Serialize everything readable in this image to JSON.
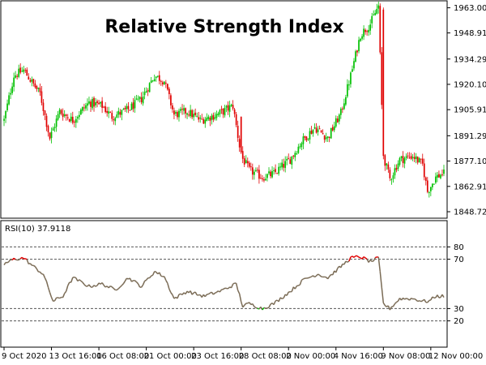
{
  "chart_data": {
    "type": "candlestick-with-rsi",
    "title": "Relative Strength Index",
    "price_axis": {
      "ticks": [
        "1963.000",
        "1948.910",
        "1934.290",
        "1920.100",
        "1905.910",
        "1891.290",
        "1877.100",
        "1862.910",
        "1848.720"
      ],
      "range": [
        1846,
        1966
      ]
    },
    "rsi": {
      "label": "RSI(10) 37.9118",
      "levels": [
        80,
        70,
        30,
        20
      ],
      "level_labels": [
        "80",
        "70",
        "30",
        "20"
      ],
      "range": [
        0,
        100
      ],
      "overbought": 70,
      "oversold": 30,
      "colors": {
        "normal": "#7a6b55",
        "overbought": "#e00000",
        "oversold": "#00c000"
      }
    },
    "x_axis": {
      "ticks": [
        {
          "label": "9 Oct 2020",
          "index": 0
        },
        {
          "label": "13 Oct 16:00",
          "index": 29
        },
        {
          "label": "16 Oct 08:00",
          "index": 58
        },
        {
          "label": "21 Oct 00:00",
          "index": 87
        },
        {
          "label": "23 Oct 16:00",
          "index": 116
        },
        {
          "label": "28 Oct 08:00",
          "index": 145
        },
        {
          "label": "2 Nov 00:00",
          "index": 174
        },
        {
          "label": "4 Nov 16:00",
          "index": 203
        },
        {
          "label": "9 Nov 08:00",
          "index": 232
        },
        {
          "label": "12 Nov 00:00",
          "index": 261
        }
      ]
    },
    "candle_colors": {
      "up": "#00c000",
      "down": "#e00000"
    },
    "close_anchors": [
      [
        0,
        1900
      ],
      [
        6,
        1925
      ],
      [
        12,
        1928
      ],
      [
        18,
        1920
      ],
      [
        22,
        1915
      ],
      [
        28,
        1890
      ],
      [
        34,
        1905
      ],
      [
        42,
        1900
      ],
      [
        52,
        1910
      ],
      [
        60,
        1908
      ],
      [
        66,
        1902
      ],
      [
        76,
        1906
      ],
      [
        84,
        1912
      ],
      [
        92,
        1925
      ],
      [
        98,
        1922
      ],
      [
        104,
        1903
      ],
      [
        112,
        1905
      ],
      [
        120,
        1900
      ],
      [
        130,
        1903
      ],
      [
        140,
        1908
      ],
      [
        145,
        1880
      ],
      [
        150,
        1872
      ],
      [
        158,
        1868
      ],
      [
        165,
        1870
      ],
      [
        175,
        1878
      ],
      [
        182,
        1888
      ],
      [
        190,
        1896
      ],
      [
        198,
        1890
      ],
      [
        206,
        1904
      ],
      [
        212,
        1925
      ],
      [
        218,
        1948
      ],
      [
        224,
        1954
      ],
      [
        229,
        1964
      ],
      [
        232,
        1880
      ],
      [
        236,
        1867
      ],
      [
        242,
        1878
      ],
      [
        250,
        1880
      ],
      [
        256,
        1875
      ],
      [
        259,
        1860
      ],
      [
        264,
        1868
      ],
      [
        268,
        1870
      ]
    ],
    "rsi_anchors": [
      [
        0,
        66
      ],
      [
        6,
        70
      ],
      [
        12,
        71
      ],
      [
        18,
        64
      ],
      [
        24,
        58
      ],
      [
        30,
        36
      ],
      [
        36,
        40
      ],
      [
        42,
        55
      ],
      [
        52,
        48
      ],
      [
        60,
        50
      ],
      [
        68,
        45
      ],
      [
        76,
        55
      ],
      [
        84,
        48
      ],
      [
        92,
        60
      ],
      [
        98,
        56
      ],
      [
        104,
        38
      ],
      [
        112,
        44
      ],
      [
        122,
        40
      ],
      [
        132,
        44
      ],
      [
        142,
        50
      ],
      [
        146,
        32
      ],
      [
        150,
        34
      ],
      [
        158,
        30
      ],
      [
        165,
        34
      ],
      [
        175,
        44
      ],
      [
        184,
        54
      ],
      [
        192,
        58
      ],
      [
        198,
        55
      ],
      [
        206,
        64
      ],
      [
        212,
        71
      ],
      [
        218,
        72
      ],
      [
        224,
        68
      ],
      [
        229,
        71
      ],
      [
        232,
        34
      ],
      [
        236,
        30
      ],
      [
        242,
        38
      ],
      [
        250,
        38
      ],
      [
        256,
        36
      ],
      [
        260,
        36
      ],
      [
        264,
        40
      ],
      [
        268,
        40
      ]
    ]
  }
}
